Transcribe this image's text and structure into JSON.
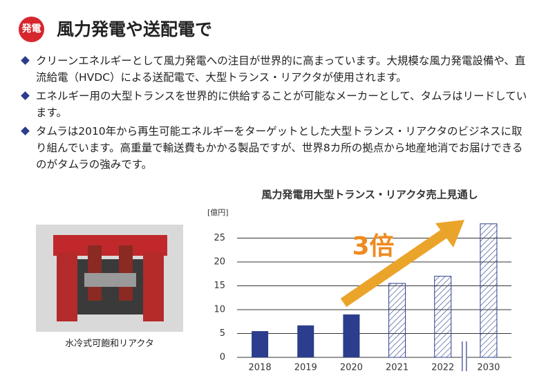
{
  "header": {
    "badge": "発電",
    "title": "風力発電や送配電で"
  },
  "bullets": [
    "クリーンエネルギーとして風力発電への注目が世界的に高まっています。大規模な風力発電設備や、直流給電（HVDC）による送配電で、大型トランス・リアクタが使用されます。",
    "エネルギー用の大型トランスを世界的に供給することが可能なメーカーとして、タムラはリードしています。",
    "タムラは2010年から再生可能エネルギーをターゲットとした大型トランス・リアクタのビジネスに取り組んでいます。高重量で輸送費もかかる製品ですが、世界8カ所の拠点から地産地消でお届けできるのがタムラの強みです。"
  ],
  "photo": {
    "caption": "水冷式可飽和リアクタ"
  },
  "chart_data": {
    "type": "bar",
    "title": "風力発電用大型トランス・リアクタ売上見通し",
    "y_label": "[億円]",
    "categories": [
      "2018",
      "2019",
      "2020",
      "2021",
      "2022",
      "2030"
    ],
    "values": [
      5.5,
      6.7,
      9,
      15.5,
      17,
      28
    ],
    "hatched": [
      false,
      false,
      false,
      true,
      true,
      true
    ],
    "color": "#2b3d8c",
    "annotation": "3倍",
    "annotation_color": "#ef8a1e",
    "ylim": [
      0,
      30
    ],
    "yticks": [
      0,
      5,
      10,
      15,
      20,
      25
    ],
    "grid": true
  }
}
